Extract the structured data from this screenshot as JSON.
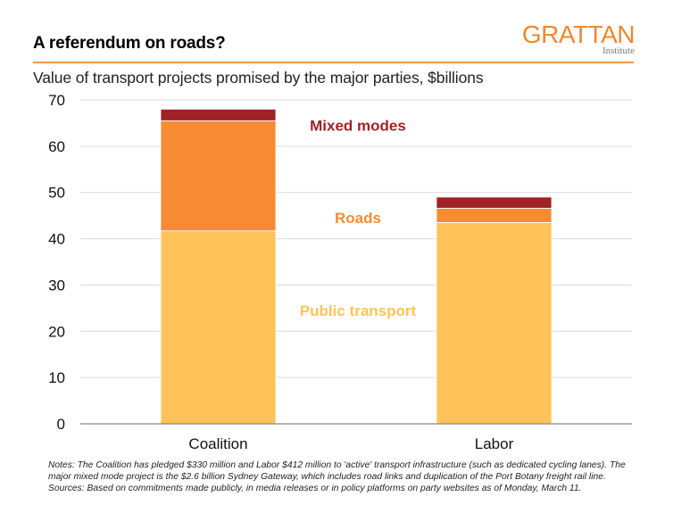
{
  "header": {
    "title": "A referendum on roads?",
    "subtitle": "Value of transport projects promised by the major parties, $billions",
    "logo": {
      "main": "GRATTAN",
      "sub": "Institute"
    }
  },
  "chart_data": {
    "type": "bar",
    "stacked": true,
    "title": "A referendum on roads?",
    "subtitle": "Value of transport projects promised by the major parties, $billions",
    "xlabel": "",
    "ylabel": "$billions",
    "categories": [
      "Coalition",
      "Labor"
    ],
    "ylim": [
      0,
      70
    ],
    "yticks": [
      0,
      10,
      20,
      30,
      40,
      50,
      60,
      70
    ],
    "grid": true,
    "legend_placement": "inline labels between bars",
    "series": [
      {
        "name": "Public transport",
        "values": [
          41.7,
          43.5
        ],
        "color": "#FFC35A",
        "label_color": "#FFC35A"
      },
      {
        "name": "Roads",
        "values": [
          23.8,
          3.1
        ],
        "color": "#F68B33",
        "label_color": "#F68B33"
      },
      {
        "name": "Mixed modes",
        "values": [
          2.5,
          2.4
        ],
        "color": "#A02226",
        "label_color": "#A02226"
      }
    ],
    "series_labels": [
      {
        "text": "Public transport",
        "series": "Public transport",
        "y_value": 24.5
      },
      {
        "text": "Roads",
        "series": "Roads",
        "y_value": 44.5
      },
      {
        "text": "Mixed modes",
        "series": "Mixed modes",
        "y_value": 64.5
      }
    ]
  },
  "notes": {
    "notes_text": "Notes: The Coalition has pledged $330 million and Labor $412 million to 'active' transport infrastructure (such as dedicated cycling lanes). The major mixed mode project is the $2.6 billion Sydney Gateway, which includes road links and duplication of the Port Botany freight rail line.",
    "sources_text": "Sources: Based on commitments made publicly, in media releases or in policy platforms on party websites as of Monday, March 11."
  }
}
